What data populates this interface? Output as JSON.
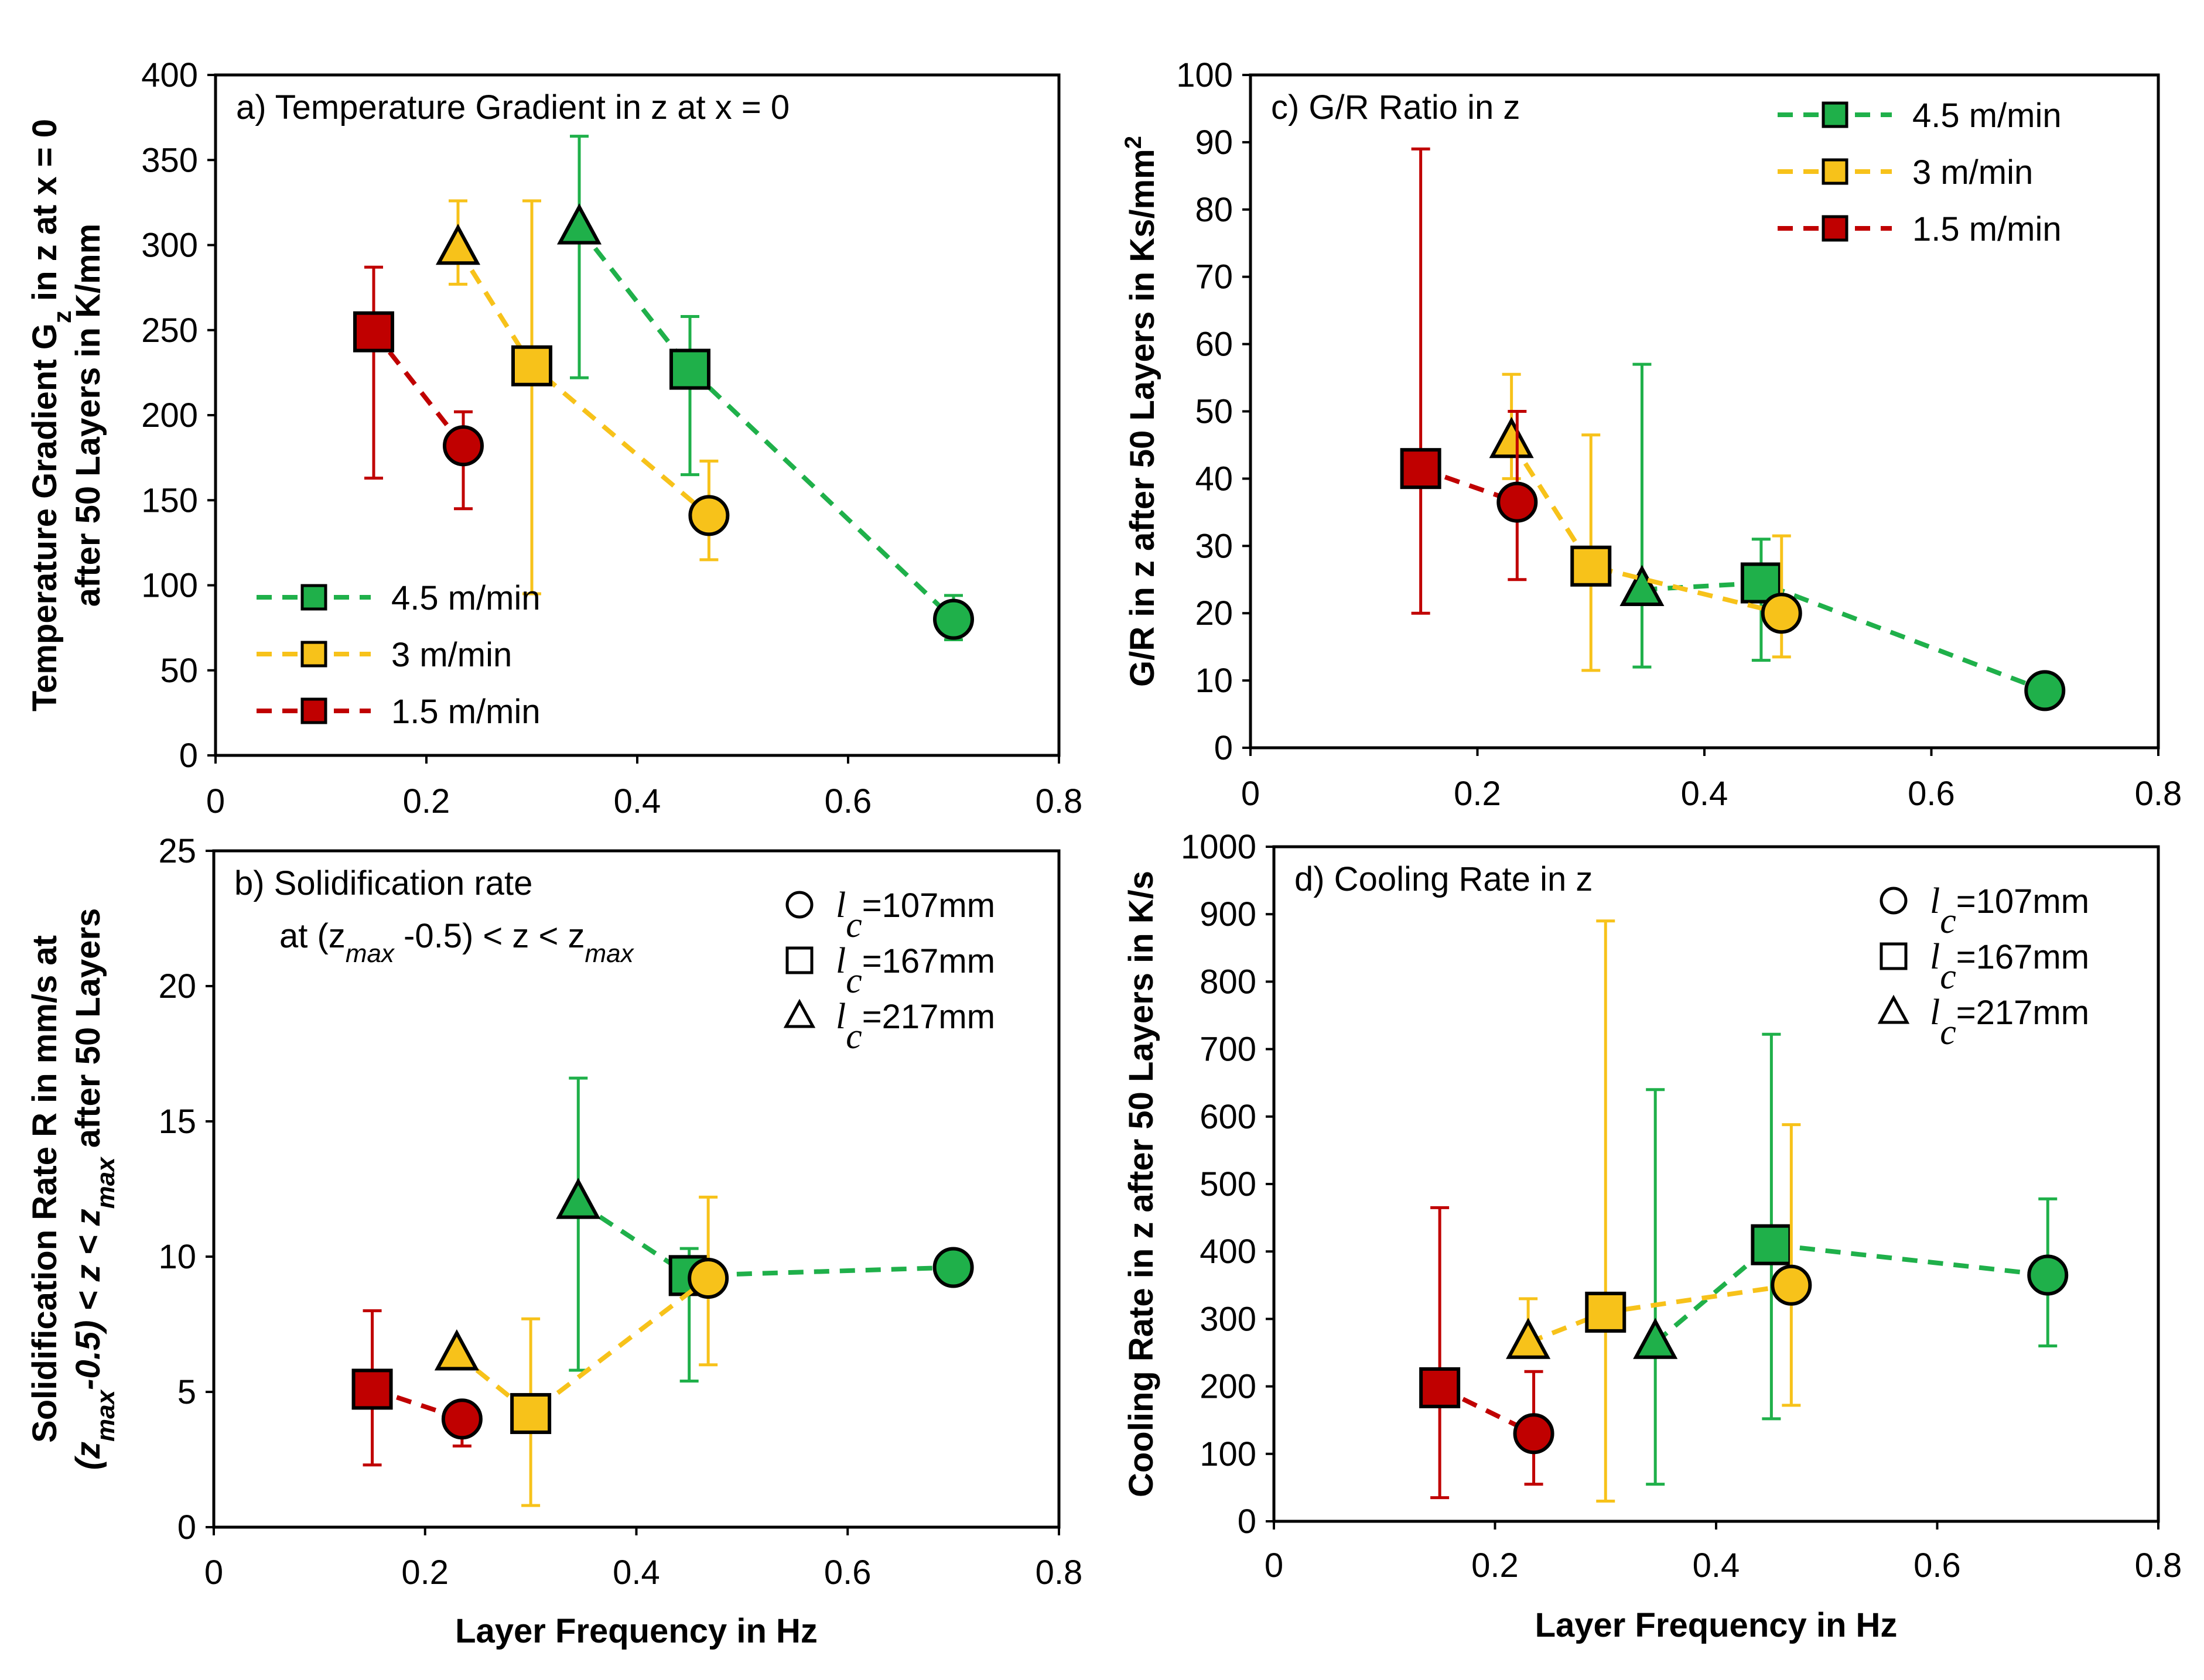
{
  "figure": {
    "x_label": "Layer Frequency in Hz",
    "legend_speed": [
      {
        "label": "4.5 m/min",
        "color": "#1fb04a"
      },
      {
        "label": "3 m/min",
        "color": "#f7c21a"
      },
      {
        "label": "1.5 m/min",
        "color": "#c00000"
      }
    ],
    "legend_shapes": [
      {
        "shape": "circle",
        "sym": "l",
        "sub": "c",
        "rest": "=107mm"
      },
      {
        "shape": "square",
        "sym": "l",
        "sub": "c",
        "rest": "=167mm"
      },
      {
        "shape": "triangle",
        "sym": "l",
        "sub": "c",
        "rest": "=217mm"
      }
    ]
  },
  "chart_data": [
    {
      "id": "a",
      "type": "scatter",
      "title": "a) Temperature  Gradient  in z at x = 0",
      "ylabel_line1": [
        "Temperature Gradient G",
        "z",
        " in z at x = 0"
      ],
      "ylabel_line2": "after 50 Layers in K/mm",
      "xlim": [
        0,
        0.8
      ],
      "ylim": [
        0,
        400
      ],
      "xticks": [
        "0",
        "0.2",
        "0.4",
        "0.6",
        "0.8"
      ],
      "yticks": [
        "0",
        "50",
        "100",
        "150",
        "200",
        "250",
        "300",
        "350",
        "400"
      ],
      "legend": "speed",
      "series": [
        {
          "name": "4.5 m/min",
          "color": "#1fb04a",
          "points": [
            {
              "x": 0.345,
              "y": 310,
              "lo": 222,
              "hi": 364,
              "shape": "triangle"
            },
            {
              "x": 0.45,
              "y": 227,
              "lo": 165,
              "hi": 258,
              "shape": "square"
            },
            {
              "x": 0.7,
              "y": 80,
              "lo": 68,
              "hi": 94,
              "shape": "circle"
            }
          ]
        },
        {
          "name": "3 m/min",
          "color": "#f7c21a",
          "points": [
            {
              "x": 0.23,
              "y": 298,
              "lo": 277,
              "hi": 326,
              "shape": "triangle"
            },
            {
              "x": 0.3,
              "y": 229,
              "lo": 95,
              "hi": 326,
              "shape": "square"
            },
            {
              "x": 0.468,
              "y": 141,
              "lo": 115,
              "hi": 173,
              "shape": "circle"
            }
          ]
        },
        {
          "name": "1.5 m/min",
          "color": "#c00000",
          "points": [
            {
              "x": 0.15,
              "y": 249,
              "lo": 163,
              "hi": 287,
              "shape": "square"
            },
            {
              "x": 0.235,
              "y": 182,
              "lo": 145,
              "hi": 202,
              "shape": "circle"
            }
          ]
        }
      ]
    },
    {
      "id": "c",
      "type": "scatter",
      "title": "c) G/R  Ratio  in z",
      "ylabel_line1": [
        "G/R in z after 50 Layers in Ks/mm",
        "2",
        ""
      ],
      "ylabel_line2": "",
      "xlim": [
        0,
        0.8
      ],
      "ylim": [
        0,
        100
      ],
      "xticks": [
        "0",
        "0.2",
        "0.4",
        "0.6",
        "0.8"
      ],
      "yticks": [
        "0",
        "10",
        "20",
        "30",
        "40",
        "50",
        "60",
        "70",
        "80",
        "90",
        "100"
      ],
      "legend": "speed",
      "series": [
        {
          "name": "4.5 m/min",
          "color": "#1fb04a",
          "points": [
            {
              "x": 0.345,
              "y": 23.5,
              "lo": 12,
              "hi": 57,
              "shape": "triangle"
            },
            {
              "x": 0.45,
              "y": 24.5,
              "lo": 13,
              "hi": 31,
              "shape": "square"
            },
            {
              "x": 0.7,
              "y": 8.5,
              "lo": 8.5,
              "hi": 8.5,
              "shape": "circle"
            }
          ]
        },
        {
          "name": "3 m/min",
          "color": "#f7c21a",
          "points": [
            {
              "x": 0.23,
              "y": 45.5,
              "lo": 40,
              "hi": 55.5,
              "shape": "triangle"
            },
            {
              "x": 0.3,
              "y": 27,
              "lo": 11.5,
              "hi": 46.5,
              "shape": "square"
            },
            {
              "x": 0.468,
              "y": 20,
              "lo": 13.5,
              "hi": 31.5,
              "shape": "circle"
            }
          ]
        },
        {
          "name": "1.5 m/min",
          "color": "#c00000",
          "points": [
            {
              "x": 0.15,
              "y": 41.5,
              "lo": 20,
              "hi": 89,
              "shape": "square"
            },
            {
              "x": 0.235,
              "y": 36.5,
              "lo": 25,
              "hi": 50,
              "shape": "circle"
            }
          ]
        }
      ]
    },
    {
      "id": "b",
      "type": "scatter",
      "title": "b) Solidification rate",
      "ylabel_line1": [
        "Solidification  Rate R in mm/s at",
        "",
        ""
      ],
      "ylabel_line2": "",
      "xlim": [
        0,
        0.8
      ],
      "ylim": [
        0,
        25
      ],
      "xticks": [
        "0",
        "0.2",
        "0.4",
        "0.6",
        "0.8"
      ],
      "yticks": [
        "0",
        "5",
        "10",
        "15",
        "20",
        "25"
      ],
      "legend": "shape",
      "series": [
        {
          "name": "4.5 m/min",
          "color": "#1fb04a",
          "points": [
            {
              "x": 0.345,
              "y": 12,
              "lo": 5.8,
              "hi": 16.6,
              "shape": "triangle"
            },
            {
              "x": 0.45,
              "y": 9.3,
              "lo": 5.4,
              "hi": 10.3,
              "shape": "square"
            },
            {
              "x": 0.7,
              "y": 9.6,
              "lo": 9.6,
              "hi": 9.6,
              "shape": "circle"
            }
          ]
        },
        {
          "name": "3 m/min",
          "color": "#f7c21a",
          "points": [
            {
              "x": 0.23,
              "y": 6.4,
              "lo": 6.4,
              "hi": 6.4,
              "shape": "triangle"
            },
            {
              "x": 0.3,
              "y": 4.2,
              "lo": 0.8,
              "hi": 7.7,
              "shape": "square"
            },
            {
              "x": 0.468,
              "y": 9.2,
              "lo": 6.0,
              "hi": 12.2,
              "shape": "circle"
            }
          ]
        },
        {
          "name": "1.5 m/min",
          "color": "#c00000",
          "points": [
            {
              "x": 0.15,
              "y": 5.1,
              "lo": 2.3,
              "hi": 8.0,
              "shape": "square"
            },
            {
              "x": 0.235,
              "y": 4.0,
              "lo": 3.0,
              "hi": 4.4,
              "shape": "circle"
            }
          ]
        }
      ]
    },
    {
      "id": "d",
      "type": "scatter",
      "title": "d) Cooling Rate  in z",
      "ylabel_line1": [
        "Cooling  Rate in z after 50 Layers in K/s",
        "",
        ""
      ],
      "ylabel_line2": "",
      "xlim": [
        0,
        0.8
      ],
      "ylim": [
        0,
        1000
      ],
      "xticks": [
        "0",
        "0.2",
        "0.4",
        "0.6",
        "0.8"
      ],
      "yticks": [
        "0",
        "100",
        "200",
        "300",
        "400",
        "500",
        "600",
        "700",
        "800",
        "900",
        "1000"
      ],
      "legend": "shape",
      "series": [
        {
          "name": "4.5 m/min",
          "color": "#1fb04a",
          "points": [
            {
              "x": 0.345,
              "y": 265,
              "lo": 55,
              "hi": 640,
              "shape": "triangle"
            },
            {
              "x": 0.45,
              "y": 410,
              "lo": 152,
              "hi": 722,
              "shape": "square"
            },
            {
              "x": 0.7,
              "y": 365,
              "lo": 260,
              "hi": 478,
              "shape": "circle"
            }
          ]
        },
        {
          "name": "3 m/min",
          "color": "#f7c21a",
          "points": [
            {
              "x": 0.23,
              "y": 265,
              "lo": 265,
              "hi": 330,
              "shape": "triangle"
            },
            {
              "x": 0.3,
              "y": 310,
              "lo": 30,
              "hi": 890,
              "shape": "square"
            },
            {
              "x": 0.468,
              "y": 350,
              "lo": 172,
              "hi": 588,
              "shape": "circle"
            }
          ]
        },
        {
          "name": "1.5 m/min",
          "color": "#c00000",
          "points": [
            {
              "x": 0.15,
              "y": 198,
              "lo": 35,
              "hi": 465,
              "shape": "square"
            },
            {
              "x": 0.235,
              "y": 130,
              "lo": 55,
              "hi": 222,
              "shape": "circle"
            }
          ]
        }
      ]
    }
  ],
  "panel_b_subtitle": {
    "t1": "at (z",
    "s1": "max",
    "t2": " -0.5) < z < z",
    "s2": "max"
  },
  "panel_b_ylabel2": {
    "t1": "(z",
    "s1": "max",
    "t2": "-0.5) < z < z",
    "s2": "max",
    "t3": "  after 50 Layers"
  }
}
